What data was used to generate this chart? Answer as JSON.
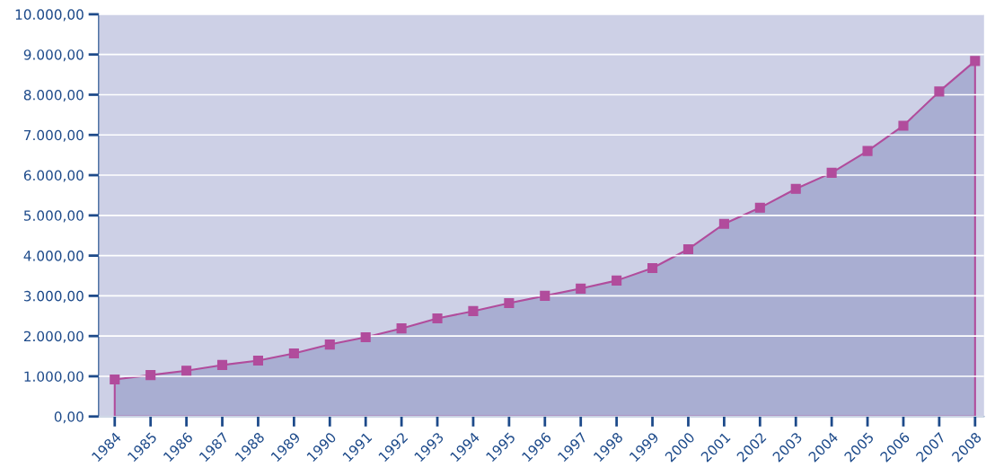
{
  "chart_data": {
    "type": "area",
    "categories": [
      "1984",
      "1985",
      "1986",
      "1987",
      "1988",
      "1989",
      "1990",
      "1991",
      "1992",
      "1993",
      "1994",
      "1995",
      "1996",
      "1997",
      "1998",
      "1999",
      "2000",
      "2001",
      "2002",
      "2003",
      "2004",
      "2005",
      "2006",
      "2007",
      "2008"
    ],
    "series": [
      {
        "color": "#b14c9c",
        "values": [
          920,
          1030,
          1140,
          1280,
          1390,
          1570,
          1790,
          1970,
          2190,
          2440,
          2620,
          2820,
          3000,
          3180,
          3380,
          3690,
          4160,
          4790,
          5190,
          5660,
          6060,
          6600,
          7230,
          8080,
          8840
        ]
      }
    ],
    "ylim": [
      0,
      10000
    ],
    "yticks": [
      {
        "value": 0,
        "label": "0,00"
      },
      {
        "value": 1000,
        "label": "1.000,00"
      },
      {
        "value": 2000,
        "label": "2.000,00"
      },
      {
        "value": 3000,
        "label": "3.000,00"
      },
      {
        "value": 4000,
        "label": "4.000,00"
      },
      {
        "value": 5000,
        "label": "5.000,00"
      },
      {
        "value": 6000,
        "label": "6.000,00"
      },
      {
        "value": 7000,
        "label": "7.000,00"
      },
      {
        "value": 8000,
        "label": "8.000,00"
      },
      {
        "value": 9000,
        "label": "9.000,00"
      },
      {
        "value": 10000,
        "label": "10.000,00"
      }
    ],
    "grid": "y",
    "marker": "square",
    "line_style": "solid",
    "legend": false
  }
}
